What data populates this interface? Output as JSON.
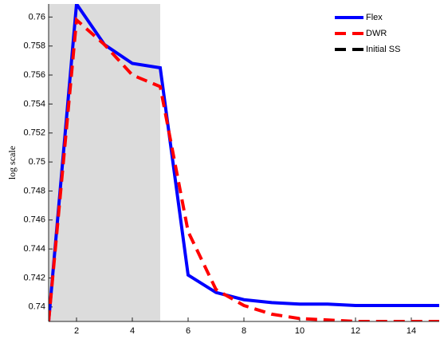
{
  "chart_data": {
    "type": "line",
    "ylabel": "log scale",
    "x": [
      1,
      2,
      3,
      4,
      5,
      6,
      7,
      8,
      9,
      10,
      11,
      12,
      13,
      14,
      15
    ],
    "series": [
      {
        "name": "Flex",
        "color": "#0000ff",
        "dash": "solid",
        "values": [
          0.739,
          0.7609,
          0.7581,
          0.7568,
          0.7565,
          0.7422,
          0.741,
          0.7405,
          0.7403,
          0.7402,
          0.7402,
          0.7401,
          0.7401,
          0.7401,
          0.7401
        ]
      },
      {
        "name": "DWR",
        "color": "#ff0000",
        "dash": "dashed",
        "values": [
          0.739,
          0.7598,
          0.7581,
          0.756,
          0.7552,
          0.7452,
          0.7412,
          0.7401,
          0.7395,
          0.7392,
          0.7391,
          0.739,
          0.739,
          0.739,
          0.739
        ]
      },
      {
        "name": "Initial SS",
        "color": "#000000",
        "dash": "dashed",
        "values": [
          null,
          null,
          null,
          null,
          null,
          null,
          null,
          null,
          null,
          null,
          null,
          null,
          null,
          null,
          null
        ]
      }
    ],
    "shade": [
      1,
      5
    ],
    "xlim": [
      1,
      15
    ],
    "xticks": [
      2,
      4,
      6,
      8,
      10,
      12,
      14
    ],
    "ylim": [
      0.739,
      0.7609
    ],
    "yticks": [
      0.74,
      0.742,
      0.744,
      0.746,
      0.748,
      0.75,
      0.752,
      0.754,
      0.756,
      0.758,
      0.76
    ],
    "legend": "top-right"
  }
}
